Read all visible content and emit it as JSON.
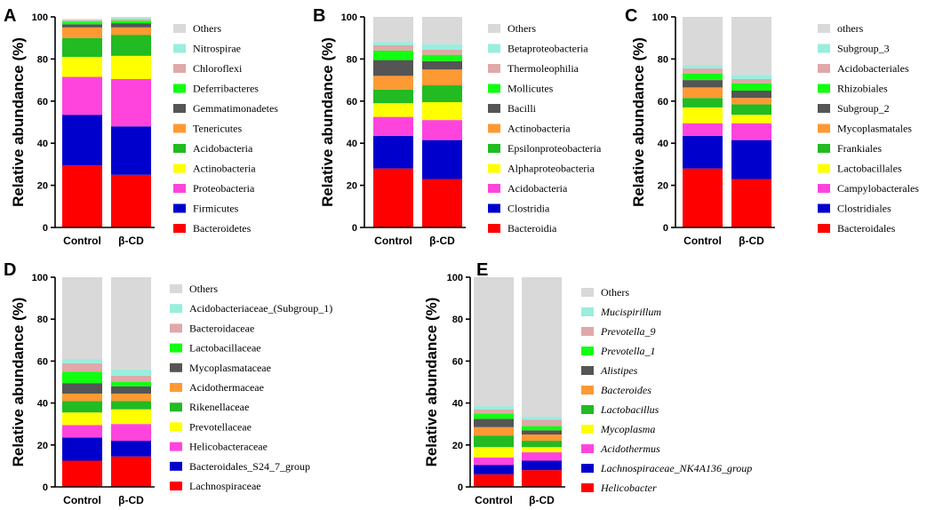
{
  "chart_data": [
    {
      "panel": "A",
      "type": "bar",
      "stacked": true,
      "ylabel": "Relative abundance (%)",
      "ylim": [
        0,
        100
      ],
      "yticks": [
        "0",
        "20",
        "40",
        "60",
        "80",
        "100"
      ],
      "categories": [
        "Control",
        "β-CD"
      ],
      "italic_legend": false,
      "series": [
        {
          "name": "Bacteroidetes",
          "color": "#ff0000",
          "values": [
            29.5,
            25
          ]
        },
        {
          "name": "Firmicutes",
          "color": "#0000cc",
          "values": [
            24,
            23
          ]
        },
        {
          "name": "Proteobacteria",
          "color": "#ff44dd",
          "values": [
            18,
            22.5
          ]
        },
        {
          "name": "Actinobacteria",
          "color": "#ffff00",
          "values": [
            9.5,
            11
          ]
        },
        {
          "name": "Acidobacteria",
          "color": "#22bb22",
          "values": [
            9,
            10
          ]
        },
        {
          "name": "Tenericutes",
          "color": "#ff9933",
          "values": [
            5,
            3.5
          ]
        },
        {
          "name": "Gemmatimonadetes",
          "color": "#555555",
          "values": [
            1.5,
            2
          ]
        },
        {
          "name": "Deferribacteres",
          "color": "#11ff11",
          "values": [
            1.2,
            1.2
          ]
        },
        {
          "name": "Chloroflexi",
          "color": "#e0a8a8",
          "values": [
            0.6,
            0.8
          ]
        },
        {
          "name": "Nitrospirae",
          "color": "#99eedd",
          "values": [
            0.4,
            0.5
          ]
        },
        {
          "name": "Others",
          "color": "#d9d9d9",
          "values": [
            0.3,
            0.5
          ]
        }
      ]
    },
    {
      "panel": "B",
      "type": "bar",
      "stacked": true,
      "ylabel": "Relative abundance (%)",
      "ylim": [
        0,
        100
      ],
      "yticks": [
        "0",
        "20",
        "40",
        "60",
        "80",
        "100"
      ],
      "categories": [
        "Control",
        "β-CD"
      ],
      "italic_legend": false,
      "series": [
        {
          "name": "Bacteroidia",
          "color": "#ff0000",
          "values": [
            28,
            23
          ]
        },
        {
          "name": "Clostridia",
          "color": "#0000cc",
          "values": [
            15.5,
            18.5
          ]
        },
        {
          "name": "Acidobacteria",
          "color": "#ff44dd",
          "values": [
            9,
            9.5
          ]
        },
        {
          "name": "Alphaproteobacteria",
          "color": "#ffff00",
          "values": [
            6.5,
            8.5
          ]
        },
        {
          "name": "Epsilonproteobacteria",
          "color": "#22bb22",
          "values": [
            6.5,
            8
          ]
        },
        {
          "name": "Actinobacteria",
          "color": "#ff9933",
          "values": [
            6.5,
            7.5
          ]
        },
        {
          "name": "Bacilli",
          "color": "#555555",
          "values": [
            7.5,
            4
          ]
        },
        {
          "name": "Mollicutes",
          "color": "#11ff11",
          "values": [
            4.5,
            3
          ]
        },
        {
          "name": "Thermoleophilia",
          "color": "#e0a8a8",
          "values": [
            2.5,
            2.5
          ]
        },
        {
          "name": "Betaproteobacteria",
          "color": "#99eedd",
          "values": [
            1.5,
            2.5
          ]
        },
        {
          "name": "Others",
          "color": "#d9d9d9",
          "values": [
            12,
            13
          ]
        }
      ]
    },
    {
      "panel": "C",
      "type": "bar",
      "stacked": true,
      "ylabel": "Relative abundance (%)",
      "ylim": [
        0,
        100
      ],
      "yticks": [
        "0",
        "20",
        "40",
        "60",
        "80",
        "100"
      ],
      "categories": [
        "Control",
        "β-CD"
      ],
      "italic_legend": false,
      "series": [
        {
          "name": "Bacteroidales",
          "color": "#ff0000",
          "values": [
            28,
            23
          ]
        },
        {
          "name": "Clostridiales",
          "color": "#0000cc",
          "values": [
            15.5,
            18.5
          ]
        },
        {
          "name": "Campylobacterales",
          "color": "#ff44dd",
          "values": [
            6,
            8
          ]
        },
        {
          "name": "Lactobacillales",
          "color": "#ffff00",
          "values": [
            7.5,
            4
          ]
        },
        {
          "name": "Frankiales",
          "color": "#22bb22",
          "values": [
            4.5,
            5
          ]
        },
        {
          "name": "Mycoplasmatales",
          "color": "#ff9933",
          "values": [
            5,
            3
          ]
        },
        {
          "name": "Subgroup_2",
          "color": "#555555",
          "values": [
            3.5,
            3.5
          ]
        },
        {
          "name": "Rhizobiales",
          "color": "#11ff11",
          "values": [
            3,
            3.5
          ]
        },
        {
          "name": "Acidobacteriales",
          "color": "#e0a8a8",
          "values": [
            2.5,
            2
          ]
        },
        {
          "name": "Subgroup_3",
          "color": "#99eedd",
          "values": [
            1.5,
            2
          ]
        },
        {
          "name": "others",
          "color": "#d9d9d9",
          "values": [
            23,
            27.5
          ]
        }
      ]
    },
    {
      "panel": "D",
      "type": "bar",
      "stacked": true,
      "ylabel": "Relative abundance (%)",
      "ylim": [
        0,
        100
      ],
      "yticks": [
        "0",
        "20",
        "40",
        "60",
        "80",
        "100"
      ],
      "categories": [
        "Control",
        "β-CD"
      ],
      "italic_legend": false,
      "series": [
        {
          "name": "Lachnospiraceae",
          "color": "#ff0000",
          "values": [
            12.5,
            14.5
          ]
        },
        {
          "name": "Bacteroidales_S24_7_group",
          "color": "#0000cc",
          "values": [
            11,
            7.5
          ]
        },
        {
          "name": "Helicobacteraceae",
          "color": "#ff44dd",
          "values": [
            6,
            8
          ]
        },
        {
          "name": "Prevotellaceae",
          "color": "#ffff00",
          "values": [
            6,
            7
          ]
        },
        {
          "name": "Rikenellaceae",
          "color": "#22bb22",
          "values": [
            5.5,
            4
          ]
        },
        {
          "name": "Acidothermaceae",
          "color": "#ff9933",
          "values": [
            3.5,
            3.5
          ]
        },
        {
          "name": "Mycoplasmataceae",
          "color": "#555555",
          "values": [
            5,
            3.5
          ]
        },
        {
          "name": "Lactobacillaceae",
          "color": "#11ff11",
          "values": [
            5.5,
            2
          ]
        },
        {
          "name": "Bacteroidaceae",
          "color": "#e0a8a8",
          "values": [
            4,
            3
          ]
        },
        {
          "name": "Acidobacteriaceae_(Subgroup_1)",
          "color": "#99eedd",
          "values": [
            2,
            3
          ]
        },
        {
          "name": "Others",
          "color": "#d9d9d9",
          "values": [
            39,
            44
          ]
        }
      ]
    },
    {
      "panel": "E",
      "type": "bar",
      "stacked": true,
      "ylabel": "Relative abundance (%)",
      "ylim": [
        0,
        100
      ],
      "yticks": [
        "0",
        "20",
        "40",
        "60",
        "80",
        "100"
      ],
      "categories": [
        "Control",
        "β-CD"
      ],
      "italic_legend": true,
      "series": [
        {
          "name": "Helicobacter",
          "color": "#ff0000",
          "values": [
            6,
            8
          ]
        },
        {
          "name": "Lachnospiraceae_NK4A136_group",
          "color": "#0000cc",
          "values": [
            4.5,
            4.5
          ]
        },
        {
          "name": "Acidothermus",
          "color": "#ff44dd",
          "values": [
            3.5,
            4
          ]
        },
        {
          "name": "Mycoplasma",
          "color": "#ffff00",
          "values": [
            5,
            2.5
          ]
        },
        {
          "name": "Lactobacillus",
          "color": "#22bb22",
          "values": [
            5.5,
            3
          ]
        },
        {
          "name": "Bacteroides",
          "color": "#ff9933",
          "values": [
            4,
            3
          ]
        },
        {
          "name": "Alistipes",
          "color": "#555555",
          "values": [
            4,
            2
          ]
        },
        {
          "name": "Prevotella_1",
          "color": "#11ff11",
          "values": [
            2.5,
            2
          ]
        },
        {
          "name": "Prevotella_9",
          "color": "#e0a8a8",
          "values": [
            2,
            3
          ]
        },
        {
          "name": "Mucispirillum",
          "color": "#99eedd",
          "values": [
            1.5,
            1.5
          ]
        },
        {
          "name": "Others",
          "color": "#d9d9d9",
          "values": [
            61.5,
            66.5
          ]
        }
      ]
    }
  ]
}
